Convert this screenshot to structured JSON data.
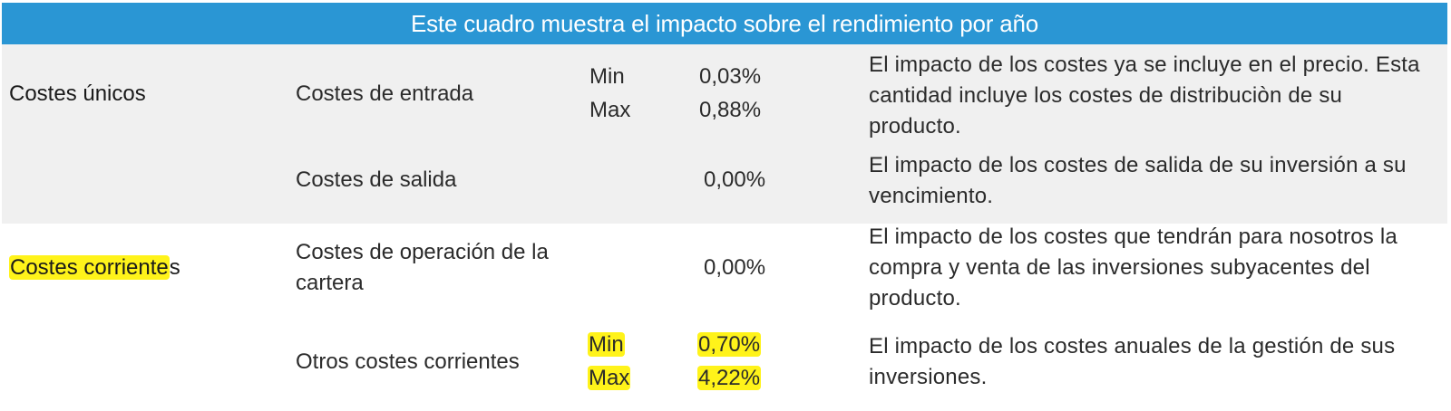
{
  "header": {
    "title": "Este cuadro muestra el impacto sobre el rendimiento por año"
  },
  "sections": [
    {
      "category": "Costes únicos",
      "rows": [
        {
          "label": "Costes de entrada",
          "min_label": "Min",
          "min_value": "0,03%",
          "max_label": "Max",
          "max_value": "0,88%",
          "description": "El impacto de los costes ya se incluye en el precio. Esta cantidad incluye los costes de distribuciòn de su producto."
        },
        {
          "label": "Costes de salida",
          "value": "0,00%",
          "description": "El impacto de los costes de salida de su inversión a su vencimiento."
        }
      ]
    },
    {
      "category_highlighted": "Costes corrientes",
      "category_rest": "s",
      "category_highlight_part": "Costes corriente",
      "rows": [
        {
          "label": "Costes de operación de la cartera",
          "value": "0,00%",
          "description": "El impacto de los costes que tendrán para nosotros la compra y venta de las inversiones subyacentes del producto."
        },
        {
          "label": "Otros costes corrientes",
          "min_label": "Min",
          "min_value": "0,70%",
          "max_label": "Max",
          "max_value": "4,22%",
          "description": "El impacto de los costes anuales de la gestión de sus inversiones."
        }
      ]
    }
  ],
  "colors": {
    "header_bg": "#2a96d4",
    "band_bg": "#f0f0f0",
    "highlight": "#fff31a"
  }
}
